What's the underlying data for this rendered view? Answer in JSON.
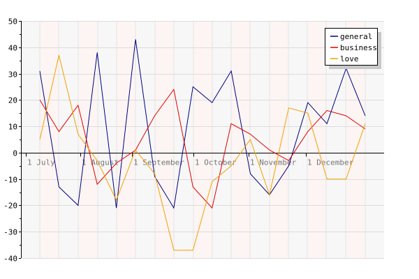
{
  "chart_data": {
    "type": "line",
    "x_tick_labels": [
      "1 July",
      "1 August",
      "1 September",
      "1 October",
      "1 November",
      "1 December"
    ],
    "ylim": [
      -40,
      50
    ],
    "y_ticks": [
      -40,
      -30,
      -20,
      -10,
      0,
      10,
      20,
      30,
      40,
      50
    ],
    "grid": true,
    "legend_position": "top-right",
    "series": [
      {
        "name": "general",
        "color": "#000080",
        "values": [
          31,
          -13,
          -20,
          38,
          -21,
          43,
          -9,
          -21,
          25,
          19,
          31,
          -8,
          -16,
          -5,
          19,
          11,
          32,
          14
        ]
      },
      {
        "name": "business",
        "color": "#e00000",
        "values": [
          20,
          8,
          18,
          -12,
          -4,
          1,
          14,
          24,
          -13,
          -21,
          11,
          7,
          1,
          -3,
          8,
          16,
          14,
          9
        ]
      },
      {
        "name": "love",
        "color": "#f0a000",
        "values": [
          5,
          37,
          7,
          -3,
          -18,
          1,
          -8,
          -37,
          -37,
          -11,
          -5,
          5,
          -16,
          17,
          15,
          -10,
          -10,
          11
        ]
      }
    ]
  }
}
